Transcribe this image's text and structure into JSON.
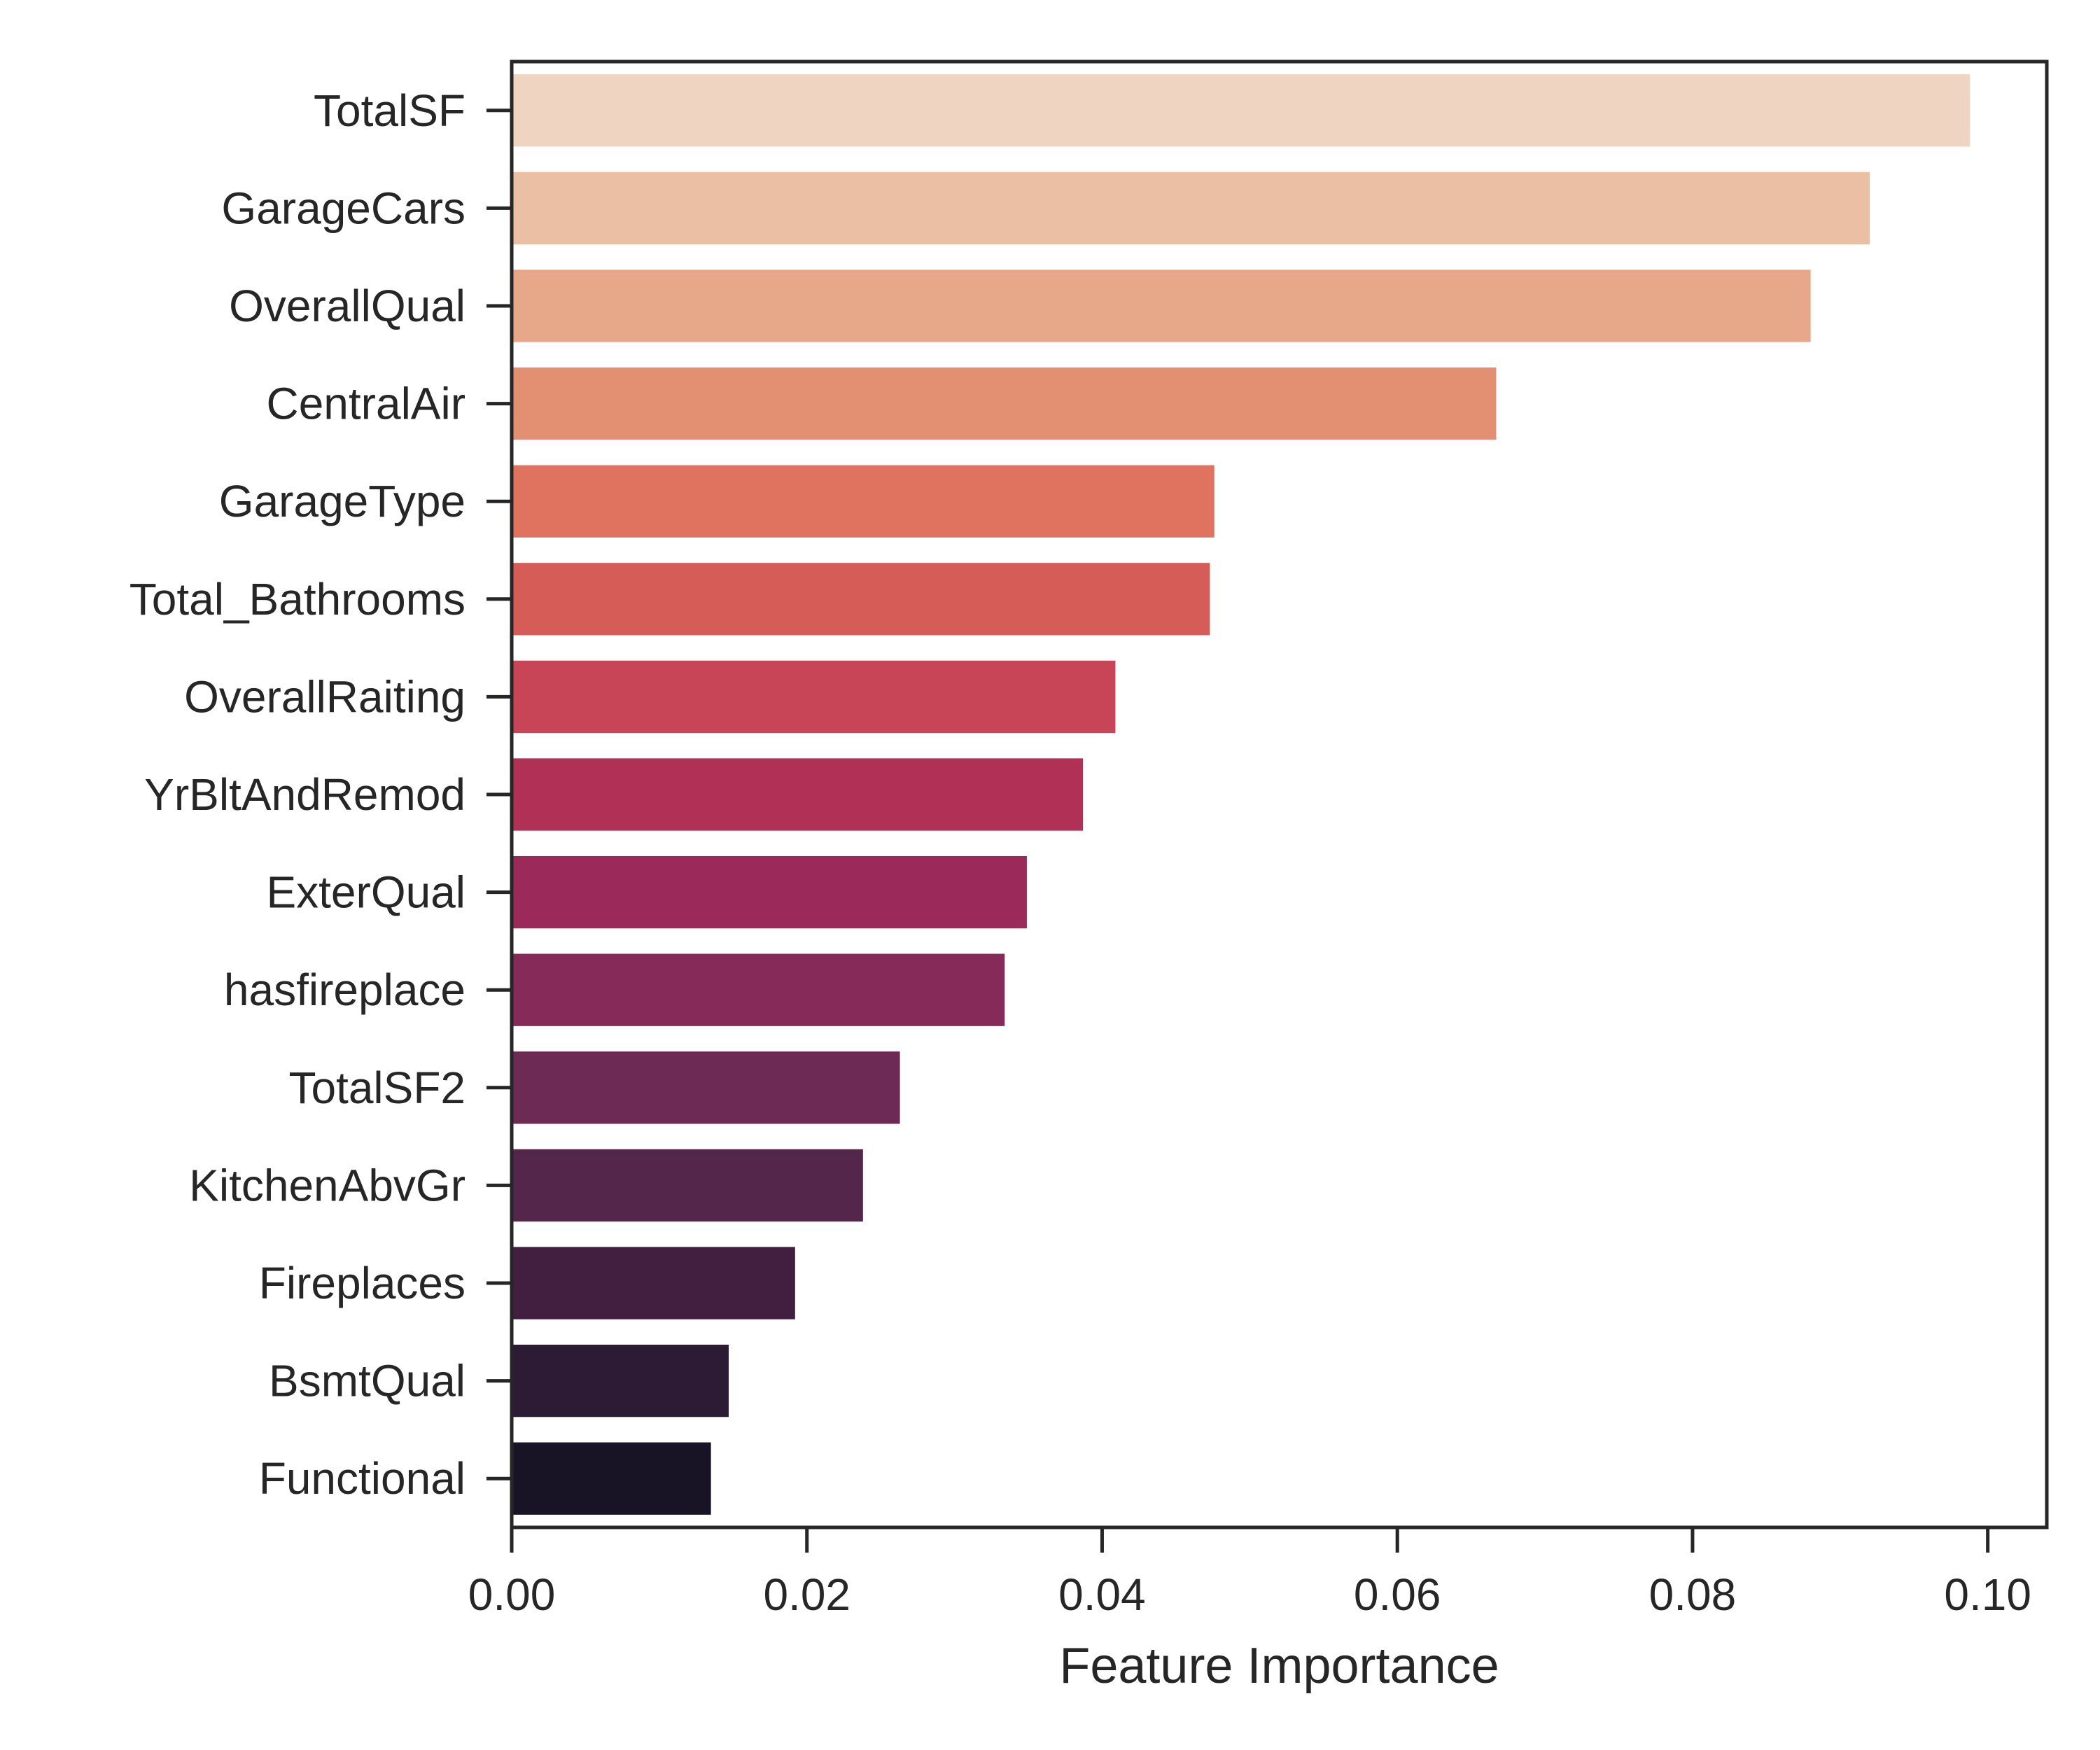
{
  "chart_data": {
    "type": "bar",
    "orientation": "horizontal",
    "categories": [
      "TotalSF",
      "GarageCars",
      "OverallQual",
      "CentralAir",
      "GarageType",
      "Total_Bathrooms",
      "OverallRaiting",
      "YrBltAndRemod",
      "ExterQual",
      "hasfireplace",
      "TotalSF2",
      "KitchenAbvGr",
      "Fireplaces",
      "BsmtQual",
      "Functional"
    ],
    "values": [
      0.0988,
      0.092,
      0.088,
      0.0667,
      0.0476,
      0.0473,
      0.0409,
      0.0387,
      0.0349,
      0.0334,
      0.0263,
      0.0238,
      0.0192,
      0.0147,
      0.0135
    ],
    "colors": [
      "#f0d4c2",
      "#ebbfa4",
      "#e7a889",
      "#e38f71",
      "#df735f",
      "#d55c57",
      "#c84457",
      "#b13156",
      "#9b2959",
      "#862b59",
      "#6c2a54",
      "#55264b",
      "#421f41",
      "#2d1a34",
      "#181425"
    ],
    "title": "",
    "xlabel": "Feature Importance",
    "ylabel": "",
    "xlim": [
      0,
      0.104
    ],
    "xticks": [
      "0.00",
      "0.02",
      "0.04",
      "0.06",
      "0.08",
      "0.10"
    ],
    "grid": false
  }
}
